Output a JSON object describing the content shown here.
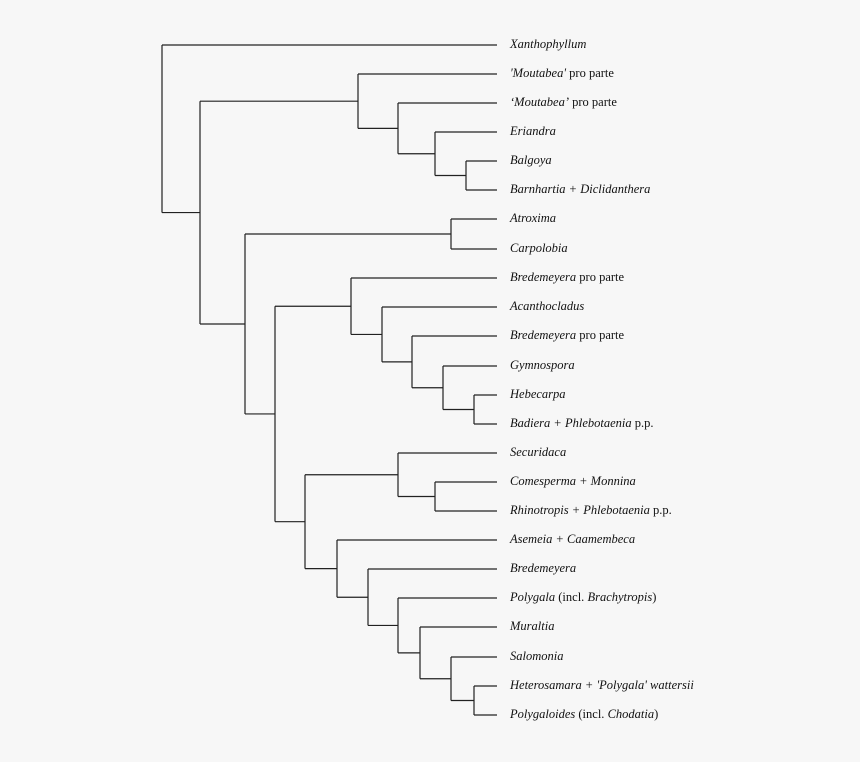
{
  "tree": {
    "children": [
      {
        "leaf": 0
      },
      {
        "children": [
          {
            "children": [
              {
                "leaf": 1
              },
              {
                "children": [
                  {
                    "leaf": 2
                  },
                  {
                    "children": [
                      {
                        "leaf": 3
                      },
                      {
                        "children": [
                          {
                            "leaf": 4
                          },
                          {
                            "leaf": 5
                          }
                        ]
                      }
                    ]
                  }
                ]
              }
            ]
          },
          {
            "children": [
              {
                "children": [
                  {
                    "leaf": 6
                  },
                  {
                    "leaf": 7
                  }
                ]
              },
              {
                "children": [
                  {
                    "children": [
                      {
                        "leaf": 8
                      },
                      {
                        "children": [
                          {
                            "leaf": 9
                          },
                          {
                            "children": [
                              {
                                "leaf": 10
                              },
                              {
                                "children": [
                                  {
                                    "leaf": 11
                                  },
                                  {
                                    "children": [
                                      {
                                        "leaf": 12
                                      },
                                      {
                                        "leaf": 13
                                      }
                                    ]
                                  }
                                ]
                              }
                            ]
                          }
                        ]
                      }
                    ]
                  },
                  {
                    "children": [
                      {
                        "children": [
                          {
                            "leaf": 14
                          },
                          {
                            "children": [
                              {
                                "leaf": 15
                              },
                              {
                                "leaf": 16
                              }
                            ]
                          }
                        ]
                      },
                      {
                        "children": [
                          {
                            "leaf": 17
                          },
                          {
                            "children": [
                              {
                                "leaf": 18
                              },
                              {
                                "children": [
                                  {
                                    "leaf": 19
                                  },
                                  {
                                    "children": [
                                      {
                                        "leaf": 20
                                      },
                                      {
                                        "children": [
                                          {
                                            "leaf": 21
                                          },
                                          {
                                            "children": [
                                              {
                                                "leaf": 22
                                              },
                                              {
                                                "leaf": 23
                                              }
                                            ]
                                          }
                                        ]
                                      }
                                    ]
                                  }
                                ]
                              }
                            ]
                          }
                        ]
                      }
                    ]
                  }
                ]
              }
            ]
          }
        ]
      }
    ]
  },
  "leaves": [
    [
      {
        "t": "Xanthophyllum",
        "i": true
      }
    ],
    [
      {
        "t": "'Moutabea'",
        "i": true
      },
      {
        "t": " pro parte",
        "i": false
      }
    ],
    [
      {
        "t": "‘Moutabea’",
        "i": true
      },
      {
        "t": " pro parte",
        "i": false
      }
    ],
    [
      {
        "t": "Eriandra",
        "i": true
      }
    ],
    [
      {
        "t": "Balgoya",
        "i": true
      }
    ],
    [
      {
        "t": "Barnhartia + Diclidanthera",
        "i": true
      }
    ],
    [
      {
        "t": "Atroxima",
        "i": true
      }
    ],
    [
      {
        "t": "Carpolobia",
        "i": true
      }
    ],
    [
      {
        "t": "Bredemeyera",
        "i": true
      },
      {
        "t": " pro parte",
        "i": false
      }
    ],
    [
      {
        "t": "Acanthocladus",
        "i": true
      }
    ],
    [
      {
        "t": "Bredemeyera",
        "i": true
      },
      {
        "t": " pro parte",
        "i": false
      }
    ],
    [
      {
        "t": "Gymnospora",
        "i": true
      }
    ],
    [
      {
        "t": "Hebecarpa",
        "i": true
      }
    ],
    [
      {
        "t": "Badiera + Phlebotaenia",
        "i": true
      },
      {
        "t": " p.p.",
        "i": false
      }
    ],
    [
      {
        "t": "Securidaca",
        "i": true
      }
    ],
    [
      {
        "t": "Comesperma + Monnina",
        "i": true
      }
    ],
    [
      {
        "t": "Rhinotropis + Phlebotaenia",
        "i": true
      },
      {
        "t": " p.p.",
        "i": false
      }
    ],
    [
      {
        "t": "Asemeia + Caamembeca",
        "i": true
      }
    ],
    [
      {
        "t": "Bredemeyera",
        "i": true
      }
    ],
    [
      {
        "t": "Polygala",
        "i": true
      },
      {
        "t": " (incl. ",
        "i": false
      },
      {
        "t": "Brachytropis",
        "i": true
      },
      {
        "t": ")",
        "i": false
      }
    ],
    [
      {
        "t": "Muraltia",
        "i": true
      }
    ],
    [
      {
        "t": "Salomonia",
        "i": true
      }
    ],
    [
      {
        "t": "Heterosamara + 'Polygala' wattersii",
        "i": true
      }
    ],
    [
      {
        "t": "Polygaloides",
        "i": true
      },
      {
        "t": " (incl. ",
        "i": false
      },
      {
        "t": "Chodatia",
        "i": true
      },
      {
        "t": ")",
        "i": false
      }
    ]
  ],
  "colors": {
    "background": "#f7f7f7",
    "branch": "#222222",
    "text": "#111111"
  }
}
